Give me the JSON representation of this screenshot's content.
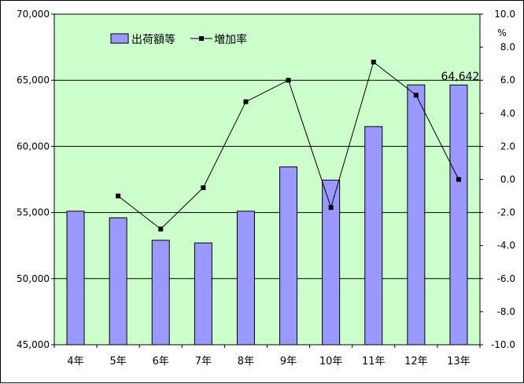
{
  "chart_data": {
    "type": "bar",
    "categories": [
      "4年",
      "5年",
      "6年",
      "7年",
      "8年",
      "9年",
      "10年",
      "11年",
      "12年",
      "13年"
    ],
    "series": [
      {
        "name": "出荷額等",
        "type": "bar",
        "axis": "left",
        "values": [
          55100,
          54600,
          52900,
          52700,
          55100,
          58450,
          57450,
          61500,
          64650,
          64642
        ]
      },
      {
        "name": "増加率",
        "type": "line",
        "axis": "right",
        "values": [
          null,
          -1.0,
          -3.0,
          -0.5,
          4.7,
          6.0,
          -1.7,
          7.1,
          5.1,
          0.0
        ]
      }
    ],
    "y_left": {
      "ylim": [
        45000,
        70000
      ],
      "ticks": [
        "45,000",
        "50,000",
        "55,000",
        "60,000",
        "65,000",
        "70,000"
      ]
    },
    "y_right": {
      "unit": "%",
      "ylim": [
        -10,
        10
      ],
      "ticks": [
        "-10.0",
        "-8.0",
        "-6.0",
        "-4.0",
        "-2.0",
        "0.0",
        "2.0",
        "4.0",
        "6.0",
        "8.0",
        "10.0"
      ]
    },
    "data_label": "64,642",
    "grid": "horizontal",
    "legend": "top-left",
    "colors": {
      "plot_bg": "#ccffcc",
      "bar_fill": "#9999ff",
      "bar_stroke": "#000000",
      "line": "#000000"
    }
  }
}
